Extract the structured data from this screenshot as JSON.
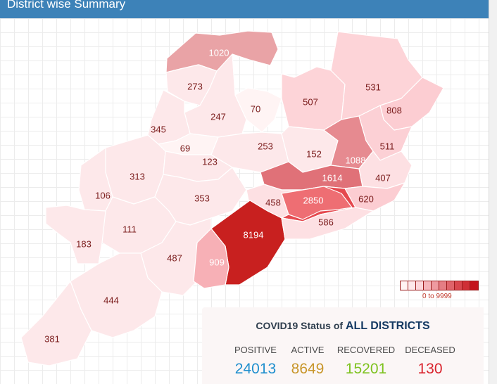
{
  "header": {
    "title": "District wise Summary"
  },
  "map": {
    "districts": [
      {
        "value": "1020",
        "fill": "#e9a3a6"
      },
      {
        "value": "273",
        "fill": "#fde8ea"
      },
      {
        "value": "247",
        "fill": "#fde8ea"
      },
      {
        "value": "70",
        "fill": "#fff4f4"
      },
      {
        "value": "507",
        "fill": "#fdd4d8"
      },
      {
        "value": "531",
        "fill": "#fdd4d8"
      },
      {
        "value": "808",
        "fill": "#fccdd2"
      },
      {
        "value": "345",
        "fill": "#fde8ea"
      },
      {
        "value": "69",
        "fill": "#fff4f4"
      },
      {
        "value": "253",
        "fill": "#fde8ea"
      },
      {
        "value": "152",
        "fill": "#fde8ea"
      },
      {
        "value": "1088",
        "fill": "#e68a90"
      },
      {
        "value": "511",
        "fill": "#fcd0d5"
      },
      {
        "value": "313",
        "fill": "#fde8ea"
      },
      {
        "value": "123",
        "fill": "#fde8ea"
      },
      {
        "value": "1614",
        "fill": "#e07178"
      },
      {
        "value": "407",
        "fill": "#fde0e3"
      },
      {
        "value": "106",
        "fill": "#fde8ea"
      },
      {
        "value": "353",
        "fill": "#fde8ea"
      },
      {
        "value": "458",
        "fill": "#fde0e3"
      },
      {
        "value": "2850",
        "fill": "#e5494f"
      },
      {
        "value": "620",
        "fill": "#fccdd2"
      },
      {
        "value": "111",
        "fill": "#fde8ea"
      },
      {
        "value": "8194",
        "fill": "#c8201f"
      },
      {
        "value": "586",
        "fill": "#fde0e3"
      },
      {
        "value": "183",
        "fill": "#fde8ea"
      },
      {
        "value": "487",
        "fill": "#fde8ea"
      },
      {
        "value": "909",
        "fill": "#f7b0b6"
      },
      {
        "value": "444",
        "fill": "#fde8ea"
      },
      {
        "value": "381",
        "fill": "#fde8ea"
      },
      {
        "value": "",
        "fill": "#ee6e73"
      }
    ]
  },
  "legend": {
    "range": "0 to 9999",
    "colors": [
      "#fff4f4",
      "#fde8ea",
      "#fcd6da",
      "#f5b5ba",
      "#ee9aa0",
      "#e57d84",
      "#df636a",
      "#d8474e",
      "#cf2f36",
      "#c4141c"
    ]
  },
  "status": {
    "title_prefix": "COVID19 Status of",
    "title_scope": "ALL DISTRICTS",
    "positive": {
      "label": "POSITIVE",
      "value": "24013",
      "color": "#1f8fce"
    },
    "active": {
      "label": "ACTIVE",
      "value": "8649",
      "color": "#c8962a"
    },
    "recovered": {
      "label": "RECOVERED",
      "value": "15201",
      "color": "#7dc21e"
    },
    "deceased": {
      "label": "DECEASED",
      "value": "130",
      "color": "#d9232d"
    }
  }
}
